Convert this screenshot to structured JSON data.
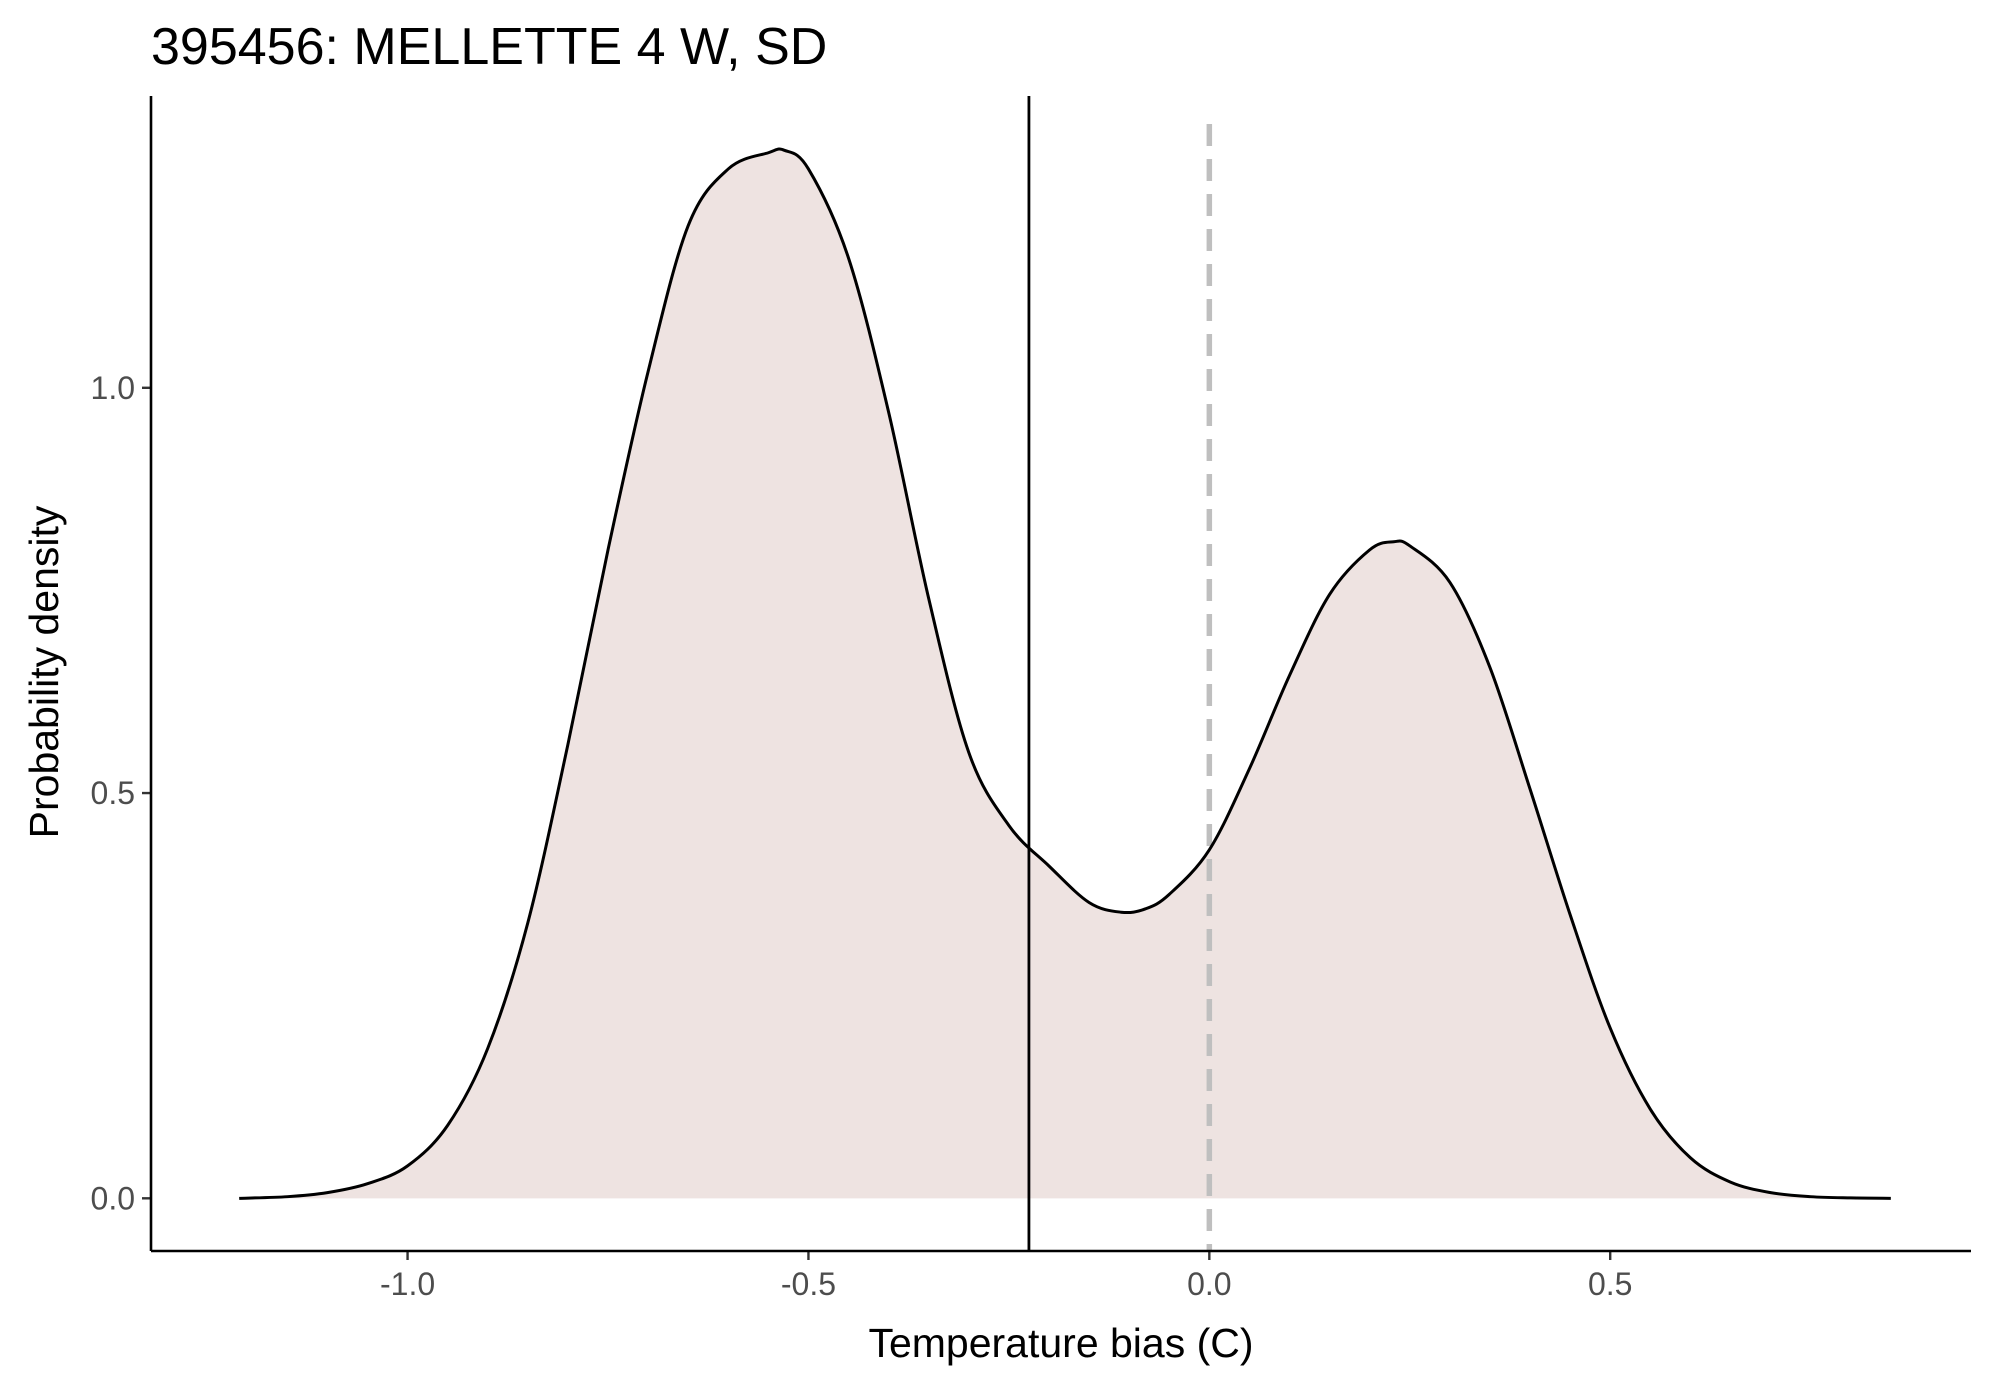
{
  "chart_data": {
    "type": "area",
    "title": "395456: MELLETTE 4 W, SD",
    "xlabel": "Temperature bias (C)",
    "ylabel": "Probability density",
    "xlim": [
      -1.32,
      0.95
    ],
    "ylim": [
      -0.065,
      1.36
    ],
    "x_ticks": [
      {
        "value": -1.0,
        "label": "-1.0"
      },
      {
        "value": -0.5,
        "label": "-0.5"
      },
      {
        "value": 0.0,
        "label": "0.0"
      },
      {
        "value": 0.5,
        "label": "0.5"
      }
    ],
    "y_ticks": [
      {
        "value": 0.0,
        "label": "0.0"
      },
      {
        "value": 0.5,
        "label": "0.5"
      },
      {
        "value": 1.0,
        "label": "1.0"
      }
    ],
    "grid": false,
    "legend": "none",
    "series": [
      {
        "x": [
          -1.21,
          -1.15,
          -1.1,
          -1.05,
          -1.0,
          -0.95,
          -0.9,
          -0.85,
          -0.8,
          -0.75,
          -0.7,
          -0.65,
          -0.6,
          -0.55,
          -0.53,
          -0.5,
          -0.45,
          -0.4,
          -0.35,
          -0.3,
          -0.25,
          -0.2,
          -0.15,
          -0.11,
          -0.08,
          -0.05,
          0.0,
          0.05,
          0.1,
          0.15,
          0.2,
          0.23,
          0.25,
          0.3,
          0.35,
          0.4,
          0.45,
          0.5,
          0.55,
          0.6,
          0.65,
          0.7,
          0.75,
          0.8,
          0.85
        ],
        "y": [
          0.0,
          0.002,
          0.007,
          0.018,
          0.04,
          0.09,
          0.185,
          0.34,
          0.56,
          0.8,
          1.02,
          1.2,
          1.27,
          1.29,
          1.293,
          1.27,
          1.16,
          0.97,
          0.74,
          0.55,
          0.46,
          0.41,
          0.365,
          0.353,
          0.357,
          0.375,
          0.43,
          0.53,
          0.645,
          0.745,
          0.8,
          0.81,
          0.805,
          0.76,
          0.655,
          0.505,
          0.35,
          0.21,
          0.11,
          0.05,
          0.02,
          0.007,
          0.002,
          0.0005,
          0.0
        ]
      }
    ],
    "vlines": [
      {
        "x": -0.225,
        "style": "solid",
        "color": "#000000"
      },
      {
        "x": 0.0,
        "style": "dashed",
        "color": "#bfbfbf"
      }
    ],
    "fill_color": "#eee3e1",
    "line_color": "#000000"
  }
}
